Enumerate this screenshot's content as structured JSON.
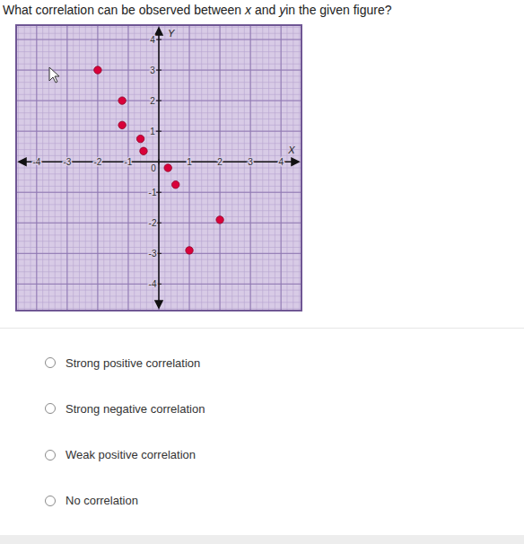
{
  "question": [
    {
      "text": "What correlation can be observed between "
    },
    {
      "text": "x",
      "italic": true
    },
    {
      "text": " and "
    },
    {
      "text": "y",
      "italic": true
    },
    {
      "text": "in the given figure?"
    }
  ],
  "options": [
    "Strong positive correlation",
    "Strong negative correlation",
    "Weak positive correlation",
    "No correlation"
  ],
  "chart_data": {
    "type": "scatter",
    "xlabel": "X",
    "ylabel": "Y",
    "x": [
      -2,
      -1.2,
      -1.2,
      -0.6,
      -0.5,
      0.3,
      0.55,
      2,
      1
    ],
    "values": [
      3,
      2,
      1.2,
      0.75,
      0.35,
      -0.2,
      -0.75,
      -1.9,
      -2.9
    ],
    "color": "#d9003a",
    "marker": "circle",
    "xlim": [
      -4.7,
      4.7
    ],
    "ylim": [
      -4.9,
      4.5
    ],
    "xticks": [
      -4,
      -3,
      -2,
      -1,
      0,
      1,
      2,
      3,
      4
    ],
    "yticks": [
      -4,
      -3,
      -2,
      -1,
      1,
      2,
      3,
      4
    ],
    "grid": true
  }
}
